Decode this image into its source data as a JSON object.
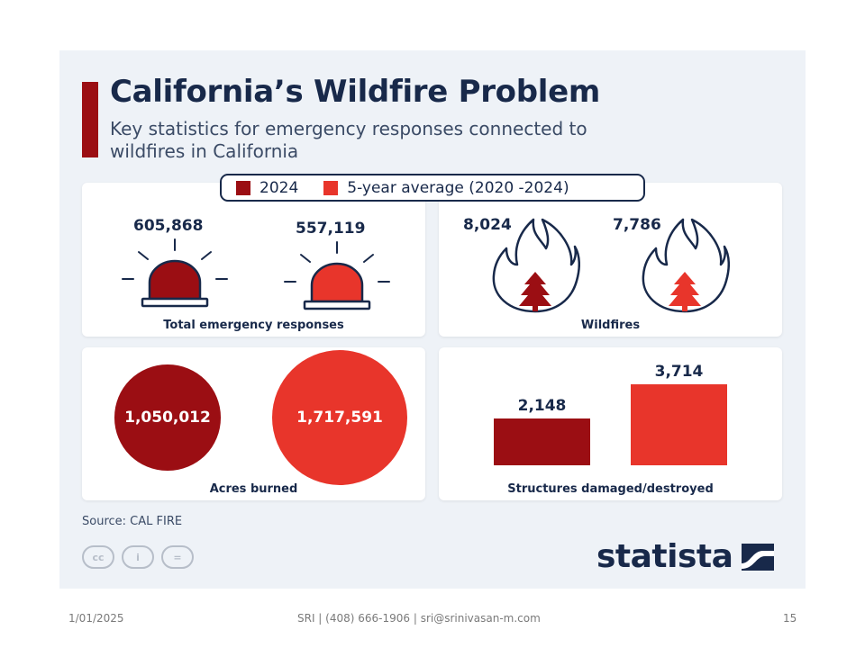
{
  "title": "California’s Wildfire Problem",
  "subtitle": "Key statistics for emergency responses connected to wildfires in California",
  "legend": {
    "item_2024": "2024",
    "item_avg": "5-year average (2020 -2024)"
  },
  "colors": {
    "c2024": "#9b0e13",
    "cavg": "#e8352b",
    "navy": "#18294a"
  },
  "chart_data": [
    {
      "type": "icon-comparison",
      "label": "Total emergency responses",
      "icon": "siren-icon",
      "series": [
        {
          "name": "2024",
          "value": 605868,
          "display": "605,868"
        },
        {
          "name": "5-year average (2020 -2024)",
          "value": 557119,
          "display": "557,119"
        }
      ]
    },
    {
      "type": "icon-comparison",
      "label": "Wildfires",
      "icon": "flame-tree-icon",
      "series": [
        {
          "name": "2024",
          "value": 8024,
          "display": "8,024"
        },
        {
          "name": "5-year average (2020 -2024)",
          "value": 7786,
          "display": "7,786"
        }
      ]
    },
    {
      "type": "bubble",
      "label": "Acres burned",
      "series": [
        {
          "name": "2024",
          "value": 1050012,
          "display": "1,050,012"
        },
        {
          "name": "5-year average (2020 -2024)",
          "value": 1717591,
          "display": "1,717,591"
        }
      ]
    },
    {
      "type": "bar",
      "label": "Structures damaged/destroyed",
      "categories": [
        "2024",
        "5-year average (2020 -2024)"
      ],
      "values": [
        2148,
        3714
      ],
      "display": [
        "2,148",
        "3,714"
      ]
    }
  ],
  "source": "Source: CAL FIRE",
  "license_icons": [
    "cc-icon",
    "person-icon",
    "equals-icon"
  ],
  "license_marks": {
    "cc": "cc",
    "person": "i",
    "equals": "="
  },
  "logo": "statista",
  "footer": {
    "date": "1/01/2025",
    "contact": "SRI | (408) 666-1906 | sri@srinivasan-m.com",
    "page": "15"
  }
}
